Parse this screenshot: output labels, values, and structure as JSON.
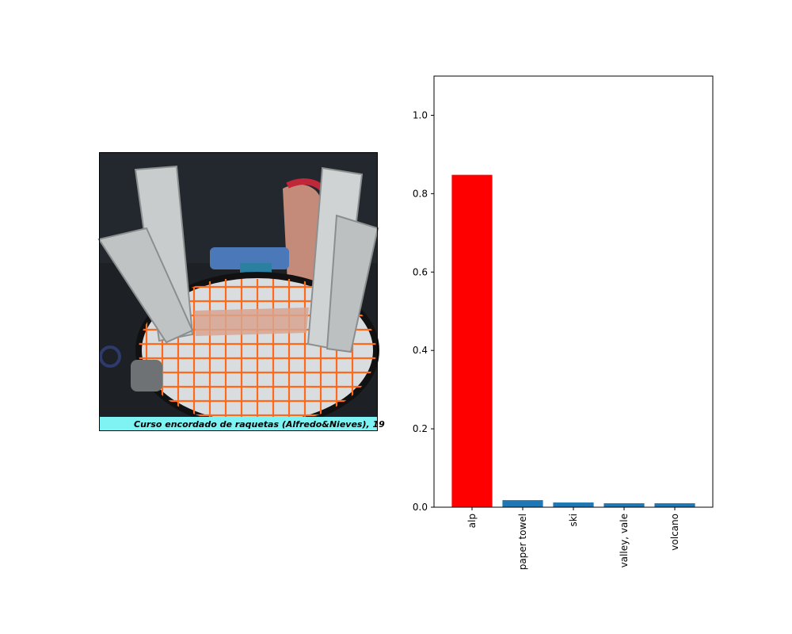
{
  "photo": {
    "caption": "Curso encordado de raquetas (Alfredo&Nieves), 19"
  },
  "colors": {
    "highlight": "#ff0000",
    "default": "#1f77b4",
    "caption_band": "#7ff3f3",
    "strings": "#ff6a1a"
  },
  "chart_data": {
    "type": "bar",
    "title": "",
    "xlabel": "",
    "ylabel": "",
    "categories": [
      "alp",
      "paper towel",
      "ski",
      "valley, vale",
      "volcano"
    ],
    "values": [
      0.848,
      0.018,
      0.012,
      0.01,
      0.01
    ],
    "highlight_index": 0,
    "ylim": [
      0,
      1.1
    ],
    "yticks": [
      0.0,
      0.2,
      0.4,
      0.6,
      0.8,
      1.0
    ],
    "ytick_labels": [
      "0.0",
      "0.2",
      "0.4",
      "0.6",
      "0.8",
      "1.0"
    ],
    "grid": false
  }
}
